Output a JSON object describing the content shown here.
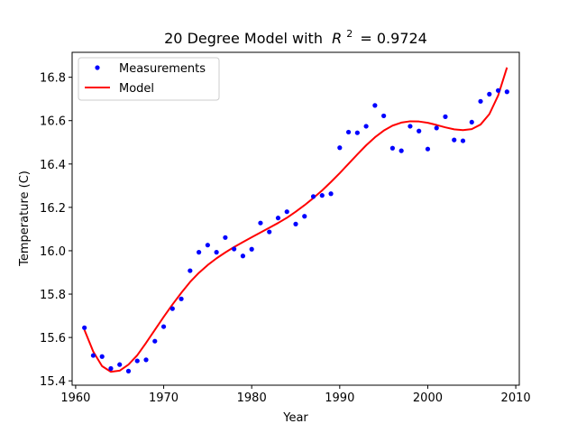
{
  "chart_data": {
    "type": "scatter",
    "title": "20 Degree Model with",
    "title_r2_symbol": "R",
    "title_r2_exponent": "2",
    "title_r2_value": "= 0.9724",
    "xlabel": "Year",
    "ylabel": "Temperature (C)",
    "xlim": [
      1959.6,
      2010.4
    ],
    "ylim": [
      15.38,
      16.915
    ],
    "xticks": [
      1960,
      1970,
      1980,
      1990,
      2000,
      2010
    ],
    "yticks": [
      15.4,
      15.6,
      15.8,
      16.0,
      16.2,
      16.4,
      16.6,
      16.8
    ],
    "legend_position": "upper-left",
    "grid": false,
    "series": [
      {
        "name": "Measurements",
        "kind": "scatter",
        "color": "#0000ff",
        "x": [
          1961,
          1962,
          1963,
          1964,
          1965,
          1966,
          1967,
          1968,
          1969,
          1970,
          1971,
          1972,
          1973,
          1974,
          1975,
          1976,
          1977,
          1978,
          1979,
          1980,
          1981,
          1982,
          1983,
          1984,
          1985,
          1986,
          1987,
          1988,
          1989,
          1990,
          1991,
          1992,
          1993,
          1994,
          1995,
          1996,
          1997,
          1998,
          1999,
          2000,
          2001,
          2002,
          2003,
          2004,
          2005,
          2006,
          2007,
          2008,
          2009
        ],
        "y": [
          15.645,
          15.517,
          15.512,
          15.457,
          15.475,
          15.445,
          15.492,
          15.497,
          15.583,
          15.65,
          15.733,
          15.778,
          15.908,
          15.993,
          16.026,
          15.993,
          16.061,
          16.008,
          15.976,
          16.007,
          16.128,
          16.087,
          16.151,
          16.18,
          16.123,
          16.159,
          16.25,
          16.255,
          16.263,
          16.475,
          16.547,
          16.544,
          16.574,
          16.67,
          16.622,
          16.473,
          16.461,
          16.574,
          16.552,
          16.469,
          16.566,
          16.618,
          16.511,
          16.507,
          16.593,
          16.689,
          16.722,
          16.739,
          16.733
        ]
      },
      {
        "name": "Model",
        "kind": "line",
        "color": "#ff0000",
        "x": [
          1961,
          1962,
          1963,
          1964,
          1965,
          1966,
          1967,
          1968,
          1969,
          1970,
          1971,
          1972,
          1973,
          1974,
          1975,
          1976,
          1977,
          1978,
          1979,
          1980,
          1981,
          1982,
          1983,
          1984,
          1985,
          1986,
          1987,
          1988,
          1989,
          1990,
          1991,
          1992,
          1993,
          1994,
          1995,
          1996,
          1997,
          1998,
          1999,
          2000,
          2001,
          2002,
          2003,
          2004,
          2005,
          2006,
          2007,
          2008,
          2009
        ],
        "y": [
          15.635,
          15.535,
          15.468,
          15.442,
          15.447,
          15.475,
          15.518,
          15.575,
          15.635,
          15.695,
          15.752,
          15.806,
          15.856,
          15.898,
          15.934,
          15.965,
          15.992,
          16.017,
          16.04,
          16.062,
          16.084,
          16.106,
          16.128,
          16.152,
          16.18,
          16.21,
          16.243,
          16.278,
          16.317,
          16.358,
          16.401,
          16.444,
          16.486,
          16.523,
          16.554,
          16.577,
          16.591,
          16.597,
          16.596,
          16.59,
          16.58,
          16.569,
          16.56,
          16.556,
          16.561,
          16.582,
          16.63,
          16.716,
          16.845
        ]
      }
    ]
  }
}
